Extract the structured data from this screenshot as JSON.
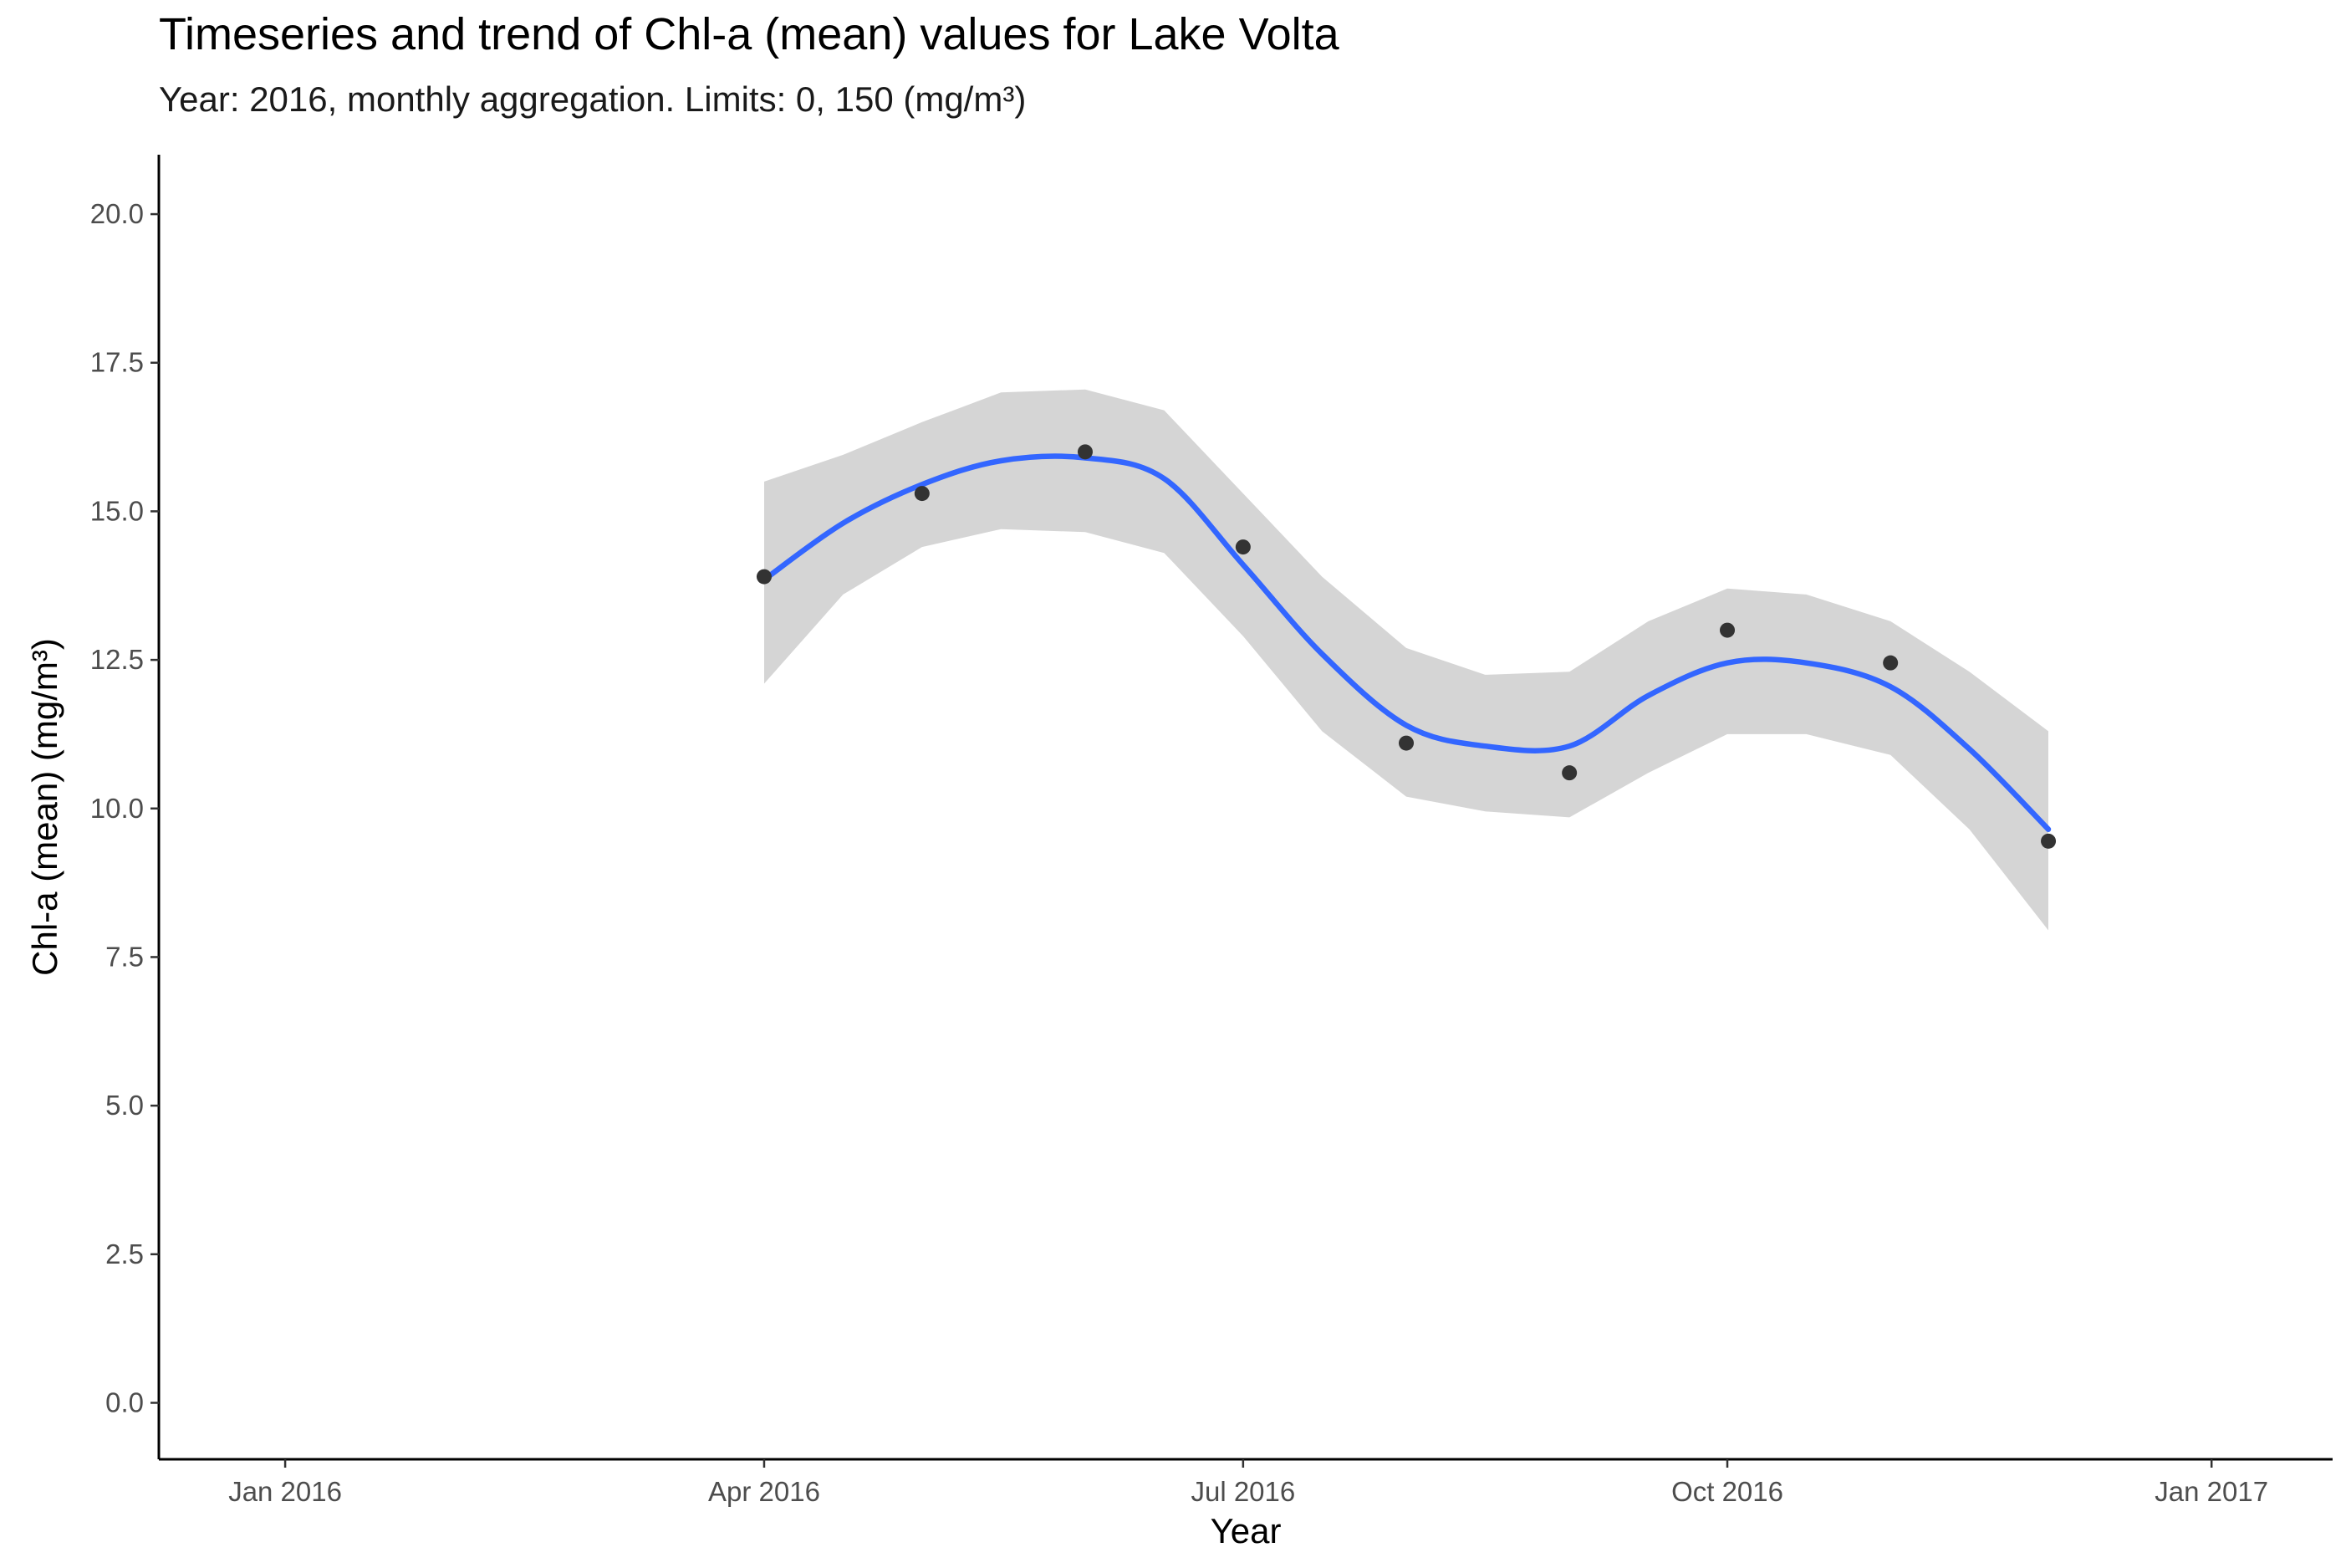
{
  "chart_data": {
    "type": "scatter",
    "title": "Timeseries and trend of Chl-a (mean) values for Lake Volta",
    "subtitle": "Year: 2016, monthly aggregation. Limits: 0, 150 (mg/m³)",
    "xlabel": "Year",
    "ylabel": "Chl-a (mean) (mg/m³)",
    "xlim": [
      "2015-12-08",
      "2017-01-24"
    ],
    "ylim": [
      -0.95,
      21.0
    ],
    "x_ticks": [
      {
        "date": "2016-01-01",
        "label": "Jan 2016"
      },
      {
        "date": "2016-04-01",
        "label": "Apr 2016"
      },
      {
        "date": "2016-07-01",
        "label": "Jul 2016"
      },
      {
        "date": "2016-10-01",
        "label": "Oct 2016"
      },
      {
        "date": "2017-01-01",
        "label": "Jan 2017"
      }
    ],
    "y_ticks": [
      {
        "value": 0,
        "label": "0.0"
      },
      {
        "value": 2.5,
        "label": "2.5"
      },
      {
        "value": 5,
        "label": "5.0"
      },
      {
        "value": 7.5,
        "label": "7.5"
      },
      {
        "value": 10,
        "label": "10.0"
      },
      {
        "value": 12.5,
        "label": "12.5"
      },
      {
        "value": 15,
        "label": "15.0"
      },
      {
        "value": 17.5,
        "label": "17.5"
      },
      {
        "value": 20,
        "label": "20.0"
      }
    ],
    "points": [
      {
        "x": "2016-04-01",
        "y": 13.9
      },
      {
        "x": "2016-05-01",
        "y": 15.3
      },
      {
        "x": "2016-06-01",
        "y": 16.0
      },
      {
        "x": "2016-07-01",
        "y": 14.4
      },
      {
        "x": "2016-08-01",
        "y": 11.1
      },
      {
        "x": "2016-09-01",
        "y": 10.6
      },
      {
        "x": "2016-10-01",
        "y": 13.0
      },
      {
        "x": "2016-11-01",
        "y": 12.45
      },
      {
        "x": "2016-12-01",
        "y": 9.45
      }
    ],
    "trend": [
      {
        "x": "2016-04-01",
        "y": 13.85,
        "lo": 12.1,
        "hi": 15.5
      },
      {
        "x": "2016-04-16",
        "y": 14.8,
        "lo": 13.6,
        "hi": 15.95
      },
      {
        "x": "2016-05-01",
        "y": 15.45,
        "lo": 14.4,
        "hi": 16.5
      },
      {
        "x": "2016-05-16",
        "y": 15.85,
        "lo": 14.7,
        "hi": 17.0
      },
      {
        "x": "2016-06-01",
        "y": 15.9,
        "lo": 14.65,
        "hi": 17.05
      },
      {
        "x": "2016-06-16",
        "y": 15.55,
        "lo": 14.3,
        "hi": 16.7
      },
      {
        "x": "2016-07-01",
        "y": 14.1,
        "lo": 12.9,
        "hi": 15.3
      },
      {
        "x": "2016-07-16",
        "y": 12.6,
        "lo": 11.3,
        "hi": 13.9
      },
      {
        "x": "2016-08-01",
        "y": 11.4,
        "lo": 10.2,
        "hi": 12.7
      },
      {
        "x": "2016-08-16",
        "y": 11.05,
        "lo": 9.95,
        "hi": 12.25
      },
      {
        "x": "2016-09-01",
        "y": 11.05,
        "lo": 9.85,
        "hi": 12.3
      },
      {
        "x": "2016-09-16",
        "y": 11.9,
        "lo": 10.6,
        "hi": 13.15
      },
      {
        "x": "2016-10-01",
        "y": 12.45,
        "lo": 11.25,
        "hi": 13.7
      },
      {
        "x": "2016-10-16",
        "y": 12.45,
        "lo": 11.25,
        "hi": 13.6
      },
      {
        "x": "2016-11-01",
        "y": 12.05,
        "lo": 10.9,
        "hi": 13.15
      },
      {
        "x": "2016-11-16",
        "y": 11.0,
        "lo": 9.65,
        "hi": 12.3
      },
      {
        "x": "2016-12-01",
        "y": 9.65,
        "lo": 7.95,
        "hi": 11.3
      }
    ],
    "grid": false,
    "colors": {
      "points": "#333333",
      "trend": "#3366ff",
      "band": "#d5d5d5",
      "axis": "#000000"
    }
  }
}
